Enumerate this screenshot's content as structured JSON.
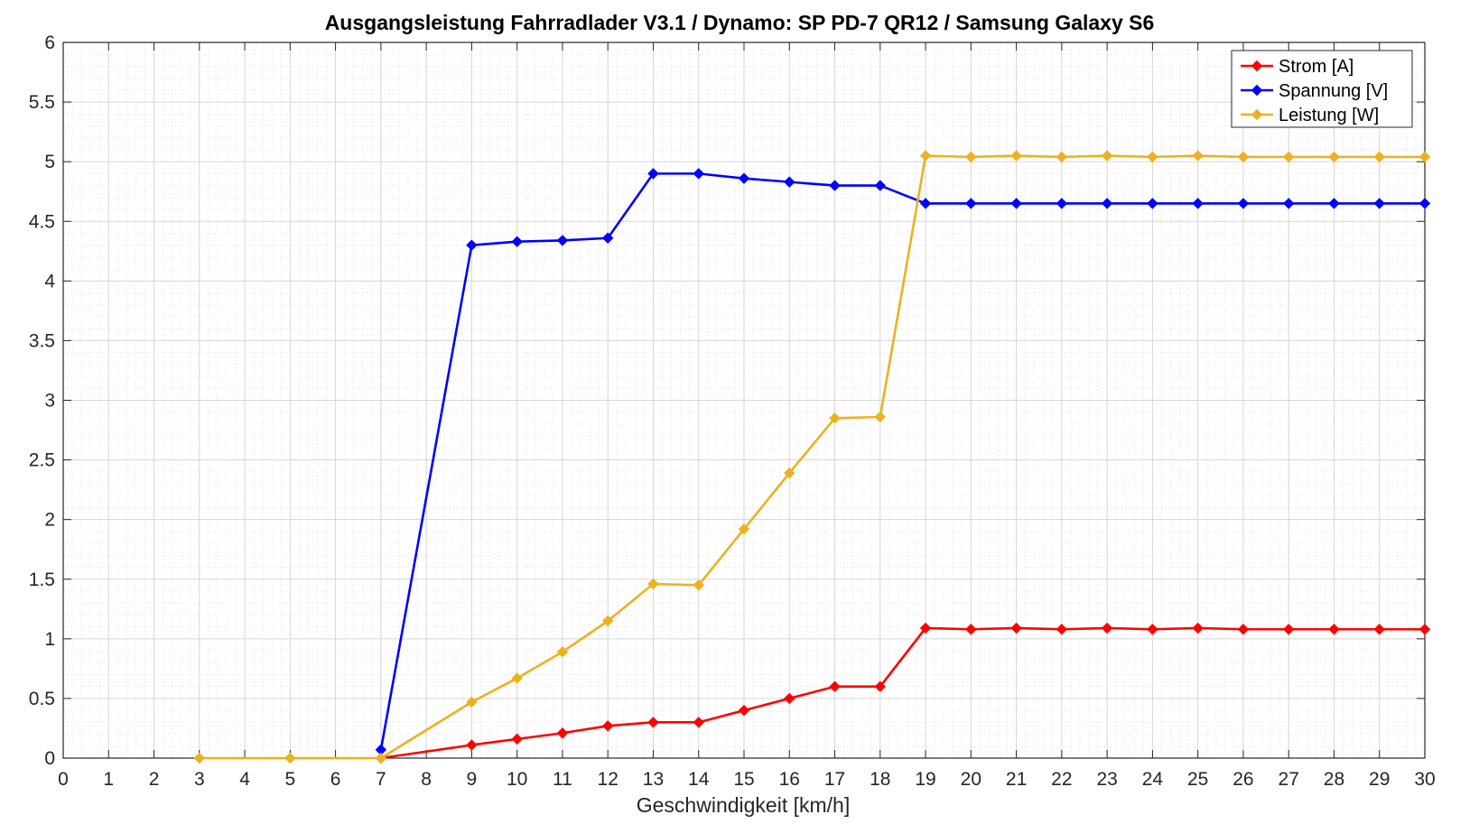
{
  "chart_data": {
    "type": "line",
    "title": "Ausgangsleistung Fahrradlader V3.1 / Dynamo: SP PD-7 QR12 / Samsung Galaxy S6",
    "xlabel": "Geschwindigkeit [km/h]",
    "ylabel": "",
    "xlim": [
      0,
      30
    ],
    "ylim": [
      0,
      6
    ],
    "xticks": [
      0,
      1,
      2,
      3,
      4,
      5,
      6,
      7,
      8,
      9,
      10,
      11,
      12,
      13,
      14,
      15,
      16,
      17,
      18,
      19,
      20,
      21,
      22,
      23,
      24,
      25,
      26,
      27,
      28,
      29,
      30
    ],
    "yticks": [
      0,
      0.5,
      1,
      1.5,
      2,
      2.5,
      3,
      3.5,
      4,
      4.5,
      5,
      5.5,
      6
    ],
    "xtick_labels": [
      "0",
      "1",
      "2",
      "3",
      "4",
      "5",
      "6",
      "7",
      "8",
      "9",
      "10",
      "11",
      "12",
      "13",
      "14",
      "15",
      "16",
      "17",
      "18",
      "19",
      "20",
      "21",
      "22",
      "23",
      "24",
      "25",
      "26",
      "27",
      "28",
      "29",
      "30"
    ],
    "ytick_labels": [
      "0",
      "0.5",
      "1",
      "1.5",
      "2",
      "2.5",
      "3",
      "3.5",
      "4",
      "4.5",
      "5",
      "5.5",
      "6"
    ],
    "grid": true,
    "minor_grid": true,
    "legend_position": "top-right",
    "series": [
      {
        "name": "Strom [A]",
        "color": "#ff0000",
        "marker": "diamond",
        "x": [
          7,
          9,
          10,
          11,
          12,
          13,
          14,
          15,
          16,
          17,
          18,
          19,
          20,
          21,
          22,
          23,
          24,
          25,
          26,
          27,
          28,
          29,
          30
        ],
        "y": [
          0,
          0.11,
          0.16,
          0.21,
          0.27,
          0.3,
          0.3,
          0.4,
          0.5,
          0.6,
          0.6,
          1.09,
          1.08,
          1.09,
          1.08,
          1.09,
          1.08,
          1.09,
          1.08,
          1.08,
          1.08,
          1.08,
          1.08
        ]
      },
      {
        "name": "Spannung [V]",
        "color": "#0000ff",
        "marker": "diamond",
        "x": [
          7,
          9,
          10,
          11,
          12,
          13,
          14,
          15,
          16,
          17,
          18,
          19,
          20,
          21,
          22,
          23,
          24,
          25,
          26,
          27,
          28,
          29,
          30
        ],
        "y": [
          0.07,
          4.3,
          4.33,
          4.34,
          4.36,
          4.9,
          4.9,
          4.86,
          4.83,
          4.8,
          4.8,
          4.65,
          4.65,
          4.65,
          4.65,
          4.65,
          4.65,
          4.65,
          4.65,
          4.65,
          4.65,
          4.65,
          4.65
        ]
      },
      {
        "name": "Leistung [W]",
        "color": "#edb120",
        "marker": "diamond",
        "x": [
          3,
          5,
          7,
          9,
          10,
          11,
          12,
          13,
          14,
          15,
          16,
          17,
          18,
          19,
          20,
          21,
          22,
          23,
          24,
          25,
          26,
          27,
          28,
          29,
          30
        ],
        "y": [
          0,
          0,
          0,
          0.47,
          0.67,
          0.89,
          1.15,
          1.46,
          1.45,
          1.92,
          2.39,
          2.85,
          2.86,
          5.05,
          5.04,
          5.05,
          5.04,
          5.05,
          5.04,
          5.05,
          5.04,
          5.04,
          5.04,
          5.04,
          5.04
        ]
      }
    ]
  }
}
